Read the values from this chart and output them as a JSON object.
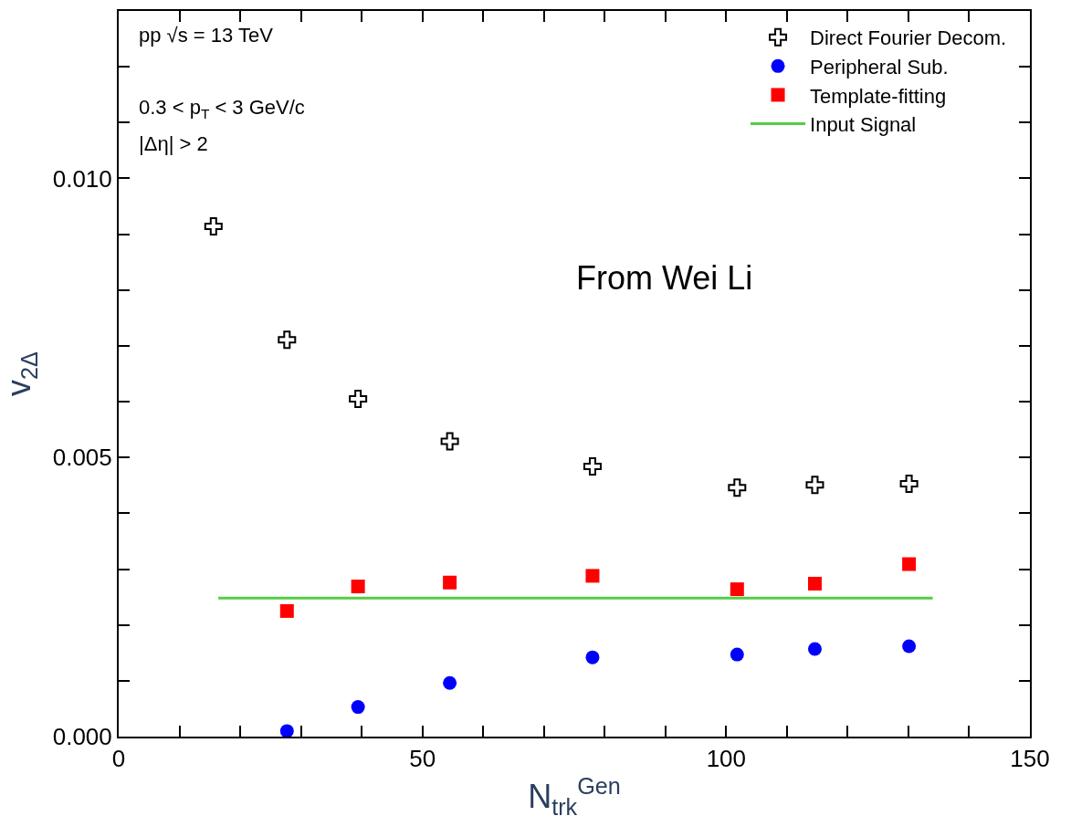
{
  "chart_data": {
    "type": "scatter",
    "xlabel": "N$_{trk}$$^{Gen}$",
    "ylabel": "v$_{2Δ}$",
    "x": [
      15.6,
      27.7,
      39.4,
      54.5,
      78.0,
      101.8,
      114.6,
      130.1
    ],
    "series": [
      {
        "name": "Direct Fourier Decom.",
        "color": "#000000",
        "marker": "cross",
        "values": [
          0.00914,
          0.00711,
          0.00605,
          0.00529,
          0.00484,
          0.00446,
          0.00451,
          0.00453
        ]
      },
      {
        "name": "Peripheral Sub.",
        "color": "#0000ff",
        "marker": "circle",
        "values": [
          null,
          0.0001,
          0.00053,
          0.00096,
          0.00142,
          0.00147,
          0.00157,
          0.00162
        ]
      },
      {
        "name": "Template-fitting",
        "color": "#ff0000",
        "marker": "square",
        "values": [
          null,
          0.00225,
          0.00269,
          0.00276,
          0.00288,
          0.00264,
          0.00274,
          0.00309
        ]
      },
      {
        "name": "Input Signal",
        "color": "#55cc44",
        "type": "line",
        "marker": "none",
        "line_style": "solid",
        "x": [
          16.4,
          134
        ],
        "values": [
          0.00248,
          0.00248
        ]
      }
    ],
    "xlim": [
      0,
      150
    ],
    "ylim": [
      0,
      0.013
    ],
    "xticks": [
      0,
      {
        "value": 10,
        "label": null
      },
      {
        "value": 20,
        "label": null
      },
      {
        "value": 30,
        "label": null
      },
      {
        "value": 40,
        "label": null
      },
      50,
      {
        "value": 60,
        "label": null
      },
      {
        "value": 70,
        "label": null
      },
      {
        "value": 80,
        "label": null
      },
      {
        "value": 90,
        "label": null
      },
      100,
      {
        "value": 110,
        "label": null
      },
      {
        "value": 120,
        "label": null
      },
      {
        "value": 130,
        "label": null
      },
      {
        "value": 140,
        "label": null
      },
      150
    ],
    "yticks": [
      {
        "value": 0,
        "label": "0.000"
      },
      {
        "value": 0.001,
        "label": null
      },
      {
        "value": 0.002,
        "label": null
      },
      {
        "value": 0.003,
        "label": null
      },
      {
        "value": 0.004,
        "label": null
      },
      {
        "value": 0.005,
        "label": "0.005"
      },
      {
        "value": 0.006,
        "label": null
      },
      {
        "value": 0.007,
        "label": null
      },
      {
        "value": 0.008,
        "label": null
      },
      {
        "value": 0.009,
        "label": null
      },
      {
        "value": 0.01,
        "label": "0.010"
      },
      {
        "value": 0.011,
        "label": null
      },
      {
        "value": 0.012,
        "label": null
      }
    ],
    "legend": "top right",
    "annotations": [
      "pp √s = 13 TeV",
      "0.3 < p$_{T}$ < 3 GeV/c",
      "|Δη| > 2",
      "From Wei Li"
    ]
  }
}
